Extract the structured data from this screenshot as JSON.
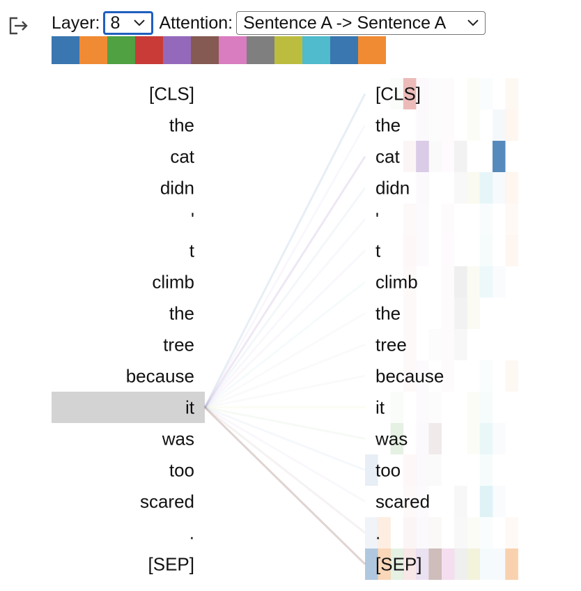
{
  "controls": {
    "layer_label": "Layer:",
    "layer_value": "8",
    "attention_label": "Attention:",
    "attention_value": "Sentence A -> Sentence A"
  },
  "icons": {
    "exit": "exit-icon",
    "dropdown": "chevron-down-icon"
  },
  "heads": [
    {
      "color": "#3a76b0"
    },
    {
      "color": "#f08b34"
    },
    {
      "color": "#4fa142"
    },
    {
      "color": "#c93b36"
    },
    {
      "color": "#9469bb"
    },
    {
      "color": "#855a52"
    },
    {
      "color": "#d97cc0"
    },
    {
      "color": "#7f7f7f"
    },
    {
      "color": "#bcbd3f"
    },
    {
      "color": "#4fbbcc"
    },
    {
      "color": "#3a76b0"
    },
    {
      "color": "#f08b34"
    }
  ],
  "selected_token_index": 10,
  "left_tokens": [
    "[CLS]",
    "the",
    "cat",
    "didn",
    "'",
    "t",
    "climb",
    "the",
    "tree",
    "because",
    "it",
    "was",
    "too",
    "scared",
    ".",
    "[SEP]"
  ],
  "right_tokens": [
    "[CLS]",
    "the",
    "cat",
    "didn",
    "'",
    "t",
    "climb",
    "the",
    "tree",
    "because",
    "it",
    "was",
    "too",
    "scared",
    ".",
    "[SEP]"
  ],
  "highlight_color": "#d3d3d3",
  "attention_lines": [
    {
      "target": 0,
      "color": "#3a76b0",
      "opacity": 0.12
    },
    {
      "target": 1,
      "color": "#9469bb",
      "opacity": 0.05
    },
    {
      "target": 2,
      "color": "#9469bb",
      "opacity": 0.16
    },
    {
      "target": 3,
      "color": "#3a76b0",
      "opacity": 0.06
    },
    {
      "target": 4,
      "color": "#9469bb",
      "opacity": 0.05
    },
    {
      "target": 5,
      "color": "#9469bb",
      "opacity": 0.05
    },
    {
      "target": 6,
      "color": "#4fbbcc",
      "opacity": 0.06
    },
    {
      "target": 7,
      "color": "#7f7f7f",
      "opacity": 0.04
    },
    {
      "target": 8,
      "color": "#7f7f7f",
      "opacity": 0.04
    },
    {
      "target": 9,
      "color": "#7f7f7f",
      "opacity": 0.04
    },
    {
      "target": 10,
      "color": "#bcbd3f",
      "opacity": 0.05
    },
    {
      "target": 11,
      "color": "#4fa142",
      "opacity": 0.05
    },
    {
      "target": 12,
      "color": "#3a76b0",
      "opacity": 0.05
    },
    {
      "target": 13,
      "color": "#9469bb",
      "opacity": 0.05
    },
    {
      "target": 14,
      "color": "#855a52",
      "opacity": 0.08
    },
    {
      "target": 15,
      "color": "#855a52",
      "opacity": 0.26
    }
  ],
  "attention_cells": [
    {
      "row": 0,
      "head": 2,
      "alpha": 0.03
    },
    {
      "row": 0,
      "head": 3,
      "alpha": 0.35
    },
    {
      "row": 0,
      "head": 4,
      "alpha": 0.04
    },
    {
      "row": 0,
      "head": 5,
      "alpha": 0.02
    },
    {
      "row": 0,
      "head": 6,
      "alpha": 0.03
    },
    {
      "row": 0,
      "head": 8,
      "alpha": 0.04
    },
    {
      "row": 0,
      "head": 9,
      "alpha": 0.03
    },
    {
      "row": 0,
      "head": 11,
      "alpha": 0.06
    },
    {
      "row": 1,
      "head": 4,
      "alpha": 0.04
    },
    {
      "row": 1,
      "head": 5,
      "alpha": 0.02
    },
    {
      "row": 1,
      "head": 6,
      "alpha": 0.03
    },
    {
      "row": 1,
      "head": 8,
      "alpha": 0.04
    },
    {
      "row": 1,
      "head": 10,
      "alpha": 0.05
    },
    {
      "row": 1,
      "head": 11,
      "alpha": 0.08
    },
    {
      "row": 2,
      "head": 3,
      "alpha": 0.05
    },
    {
      "row": 2,
      "head": 4,
      "alpha": 0.35
    },
    {
      "row": 2,
      "head": 5,
      "alpha": 0.03
    },
    {
      "row": 2,
      "head": 6,
      "alpha": 0.04
    },
    {
      "row": 2,
      "head": 7,
      "alpha": 0.1
    },
    {
      "row": 2,
      "head": 10,
      "alpha": 0.85
    },
    {
      "row": 3,
      "head": 4,
      "alpha": 0.04
    },
    {
      "row": 3,
      "head": 7,
      "alpha": 0.05
    },
    {
      "row": 3,
      "head": 8,
      "alpha": 0.08
    },
    {
      "row": 3,
      "head": 9,
      "alpha": 0.14
    },
    {
      "row": 3,
      "head": 10,
      "alpha": 0.04
    },
    {
      "row": 3,
      "head": 11,
      "alpha": 0.08
    },
    {
      "row": 4,
      "head": 3,
      "alpha": 0.03
    },
    {
      "row": 4,
      "head": 4,
      "alpha": 0.03
    },
    {
      "row": 4,
      "head": 6,
      "alpha": 0.03
    },
    {
      "row": 4,
      "head": 9,
      "alpha": 0.04
    },
    {
      "row": 4,
      "head": 11,
      "alpha": 0.05
    },
    {
      "row": 5,
      "head": 3,
      "alpha": 0.04
    },
    {
      "row": 5,
      "head": 4,
      "alpha": 0.03
    },
    {
      "row": 5,
      "head": 6,
      "alpha": 0.04
    },
    {
      "row": 5,
      "head": 9,
      "alpha": 0.05
    },
    {
      "row": 5,
      "head": 11,
      "alpha": 0.07
    },
    {
      "row": 6,
      "head": 3,
      "alpha": 0.03
    },
    {
      "row": 6,
      "head": 6,
      "alpha": 0.03
    },
    {
      "row": 6,
      "head": 7,
      "alpha": 0.12
    },
    {
      "row": 6,
      "head": 8,
      "alpha": 0.06
    },
    {
      "row": 6,
      "head": 9,
      "alpha": 0.1
    },
    {
      "row": 6,
      "head": 10,
      "alpha": 0.03
    },
    {
      "row": 7,
      "head": 3,
      "alpha": 0.03
    },
    {
      "row": 7,
      "head": 6,
      "alpha": 0.03
    },
    {
      "row": 7,
      "head": 7,
      "alpha": 0.1
    },
    {
      "row": 7,
      "head": 8,
      "alpha": 0.06
    },
    {
      "row": 8,
      "head": 3,
      "alpha": 0.03
    },
    {
      "row": 8,
      "head": 5,
      "alpha": 0.02
    },
    {
      "row": 8,
      "head": 6,
      "alpha": 0.03
    },
    {
      "row": 8,
      "head": 7,
      "alpha": 0.06
    },
    {
      "row": 9,
      "head": 3,
      "alpha": 0.03
    },
    {
      "row": 9,
      "head": 4,
      "alpha": 0.03
    },
    {
      "row": 9,
      "head": 6,
      "alpha": 0.03
    },
    {
      "row": 9,
      "head": 9,
      "alpha": 0.03
    },
    {
      "row": 9,
      "head": 11,
      "alpha": 0.06
    },
    {
      "row": 10,
      "head": 2,
      "alpha": 0.03
    },
    {
      "row": 10,
      "head": 4,
      "alpha": 0.03
    },
    {
      "row": 10,
      "head": 5,
      "alpha": 0.02
    },
    {
      "row": 10,
      "head": 8,
      "alpha": 0.04
    },
    {
      "row": 10,
      "head": 9,
      "alpha": 0.05
    },
    {
      "row": 11,
      "head": 2,
      "alpha": 0.15
    },
    {
      "row": 11,
      "head": 4,
      "alpha": 0.04
    },
    {
      "row": 11,
      "head": 5,
      "alpha": 0.12
    },
    {
      "row": 11,
      "head": 8,
      "alpha": 0.04
    },
    {
      "row": 11,
      "head": 9,
      "alpha": 0.12
    },
    {
      "row": 11,
      "head": 10,
      "alpha": 0.03
    },
    {
      "row": 12,
      "head": 0,
      "alpha": 0.12
    },
    {
      "row": 12,
      "head": 3,
      "alpha": 0.04
    },
    {
      "row": 12,
      "head": 4,
      "alpha": 0.04
    },
    {
      "row": 12,
      "head": 5,
      "alpha": 0.03
    },
    {
      "row": 12,
      "head": 9,
      "alpha": 0.05
    },
    {
      "row": 13,
      "head": 3,
      "alpha": 0.03
    },
    {
      "row": 13,
      "head": 4,
      "alpha": 0.03
    },
    {
      "row": 13,
      "head": 7,
      "alpha": 0.06
    },
    {
      "row": 13,
      "head": 9,
      "alpha": 0.18
    },
    {
      "row": 13,
      "head": 10,
      "alpha": 0.03
    },
    {
      "row": 14,
      "head": 0,
      "alpha": 0.08
    },
    {
      "row": 14,
      "head": 1,
      "alpha": 0.15
    },
    {
      "row": 14,
      "head": 3,
      "alpha": 0.05
    },
    {
      "row": 14,
      "head": 4,
      "alpha": 0.04
    },
    {
      "row": 14,
      "head": 5,
      "alpha": 0.04
    },
    {
      "row": 14,
      "head": 7,
      "alpha": 0.05
    },
    {
      "row": 14,
      "head": 8,
      "alpha": 0.04
    },
    {
      "row": 14,
      "head": 9,
      "alpha": 0.03
    },
    {
      "row": 14,
      "head": 11,
      "alpha": 0.05
    },
    {
      "row": 15,
      "head": 0,
      "alpha": 0.4
    },
    {
      "row": 15,
      "head": 1,
      "alpha": 0.35
    },
    {
      "row": 15,
      "head": 2,
      "alpha": 0.15
    },
    {
      "row": 15,
      "head": 3,
      "alpha": 0.12
    },
    {
      "row": 15,
      "head": 4,
      "alpha": 0.2
    },
    {
      "row": 15,
      "head": 5,
      "alpha": 0.4
    },
    {
      "row": 15,
      "head": 6,
      "alpha": 0.25
    },
    {
      "row": 15,
      "head": 7,
      "alpha": 0.12
    },
    {
      "row": 15,
      "head": 8,
      "alpha": 0.18
    },
    {
      "row": 15,
      "head": 9,
      "alpha": 0.06
    },
    {
      "row": 15,
      "head": 10,
      "alpha": 0.04
    },
    {
      "row": 15,
      "head": 11,
      "alpha": 0.4
    }
  ]
}
